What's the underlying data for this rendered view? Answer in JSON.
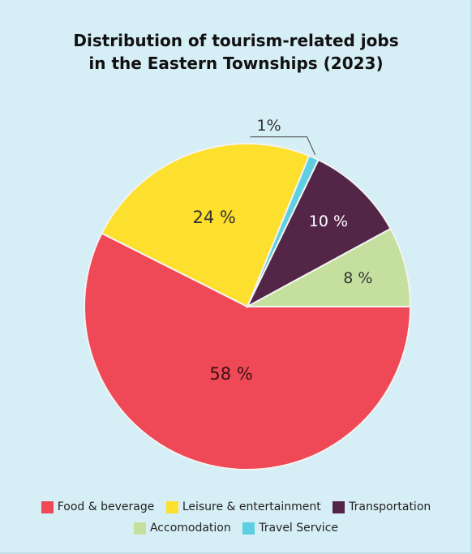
{
  "title_line1": "Distribution of tourism-related jobs",
  "title_line2": "in the Eastern Townships  (2023)",
  "chart_data": {
    "type": "pie",
    "title": "Distribution of tourism-related jobs in the Eastern Townships  (2023)",
    "slices": [
      {
        "name": "Food & beverage",
        "value": 58,
        "label": "58 %",
        "color": "#ef4856"
      },
      {
        "name": "Leisure & entertainment",
        "value": 24,
        "label": "24 %",
        "color": "#fde02e"
      },
      {
        "name": "Travel Service",
        "value": 1,
        "label": "1%",
        "color": "#5ecfe2"
      },
      {
        "name": "Transportation",
        "value": 10,
        "label": "10 %",
        "color": "#532648"
      },
      {
        "name": "Accomodation",
        "value": 8,
        "label": "8 %",
        "color": "#c5e09e"
      }
    ],
    "legend_position": "bottom"
  },
  "legend_rows": [
    [
      {
        "label": "Food & beverage",
        "color": "#ef4856"
      },
      {
        "label": "Leisure & entertainment",
        "color": "#fde02e"
      },
      {
        "label": "Transportation",
        "color": "#532648"
      }
    ],
    [
      {
        "label": "Accomodation",
        "color": "#c5e09e"
      },
      {
        "label": "Travel Service",
        "color": "#5ecfe2"
      }
    ]
  ]
}
